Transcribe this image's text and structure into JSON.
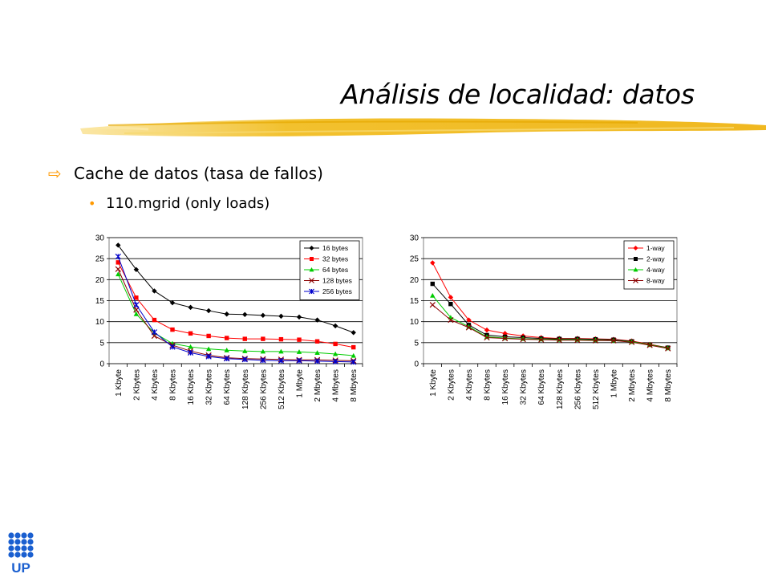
{
  "slide": {
    "title": "Análisis de localidad: datos",
    "bullet1": "Cache de datos (tasa de fallos)",
    "bullet2": "110.mgrid (only loads)",
    "logo_text": "UP"
  },
  "colors": {
    "accent": "#ff9900",
    "brush": "#f2c12e"
  },
  "icons": {
    "bullet1": "hollow-arrow-icon",
    "bullet2": "dot-icon"
  },
  "chart_data": [
    {
      "type": "line",
      "categories": [
        "1 Kbyte",
        "2 Kbytes",
        "4 Kbytes",
        "8 Kbytes",
        "16 Kbytes",
        "32 Kbytes",
        "64 Kbytes",
        "128 Kbytes",
        "256 Kbytes",
        "512 Kbytes",
        "1 Mbyte",
        "2 Mbytes",
        "4 Mbytes",
        "8 Mbytes"
      ],
      "ylim": [
        0,
        30
      ],
      "yticks": [
        0,
        5,
        10,
        15,
        20,
        25,
        30
      ],
      "grid": true,
      "legend_position": "top-right",
      "series": [
        {
          "name": "16 bytes",
          "color": "#000000",
          "marker": "diamond",
          "values": [
            28.2,
            22.4,
            17.3,
            14.5,
            13.4,
            12.6,
            11.8,
            11.7,
            11.5,
            11.3,
            11.1,
            10.4,
            9.0,
            7.4
          ]
        },
        {
          "name": "32 bytes",
          "color": "#ff0000",
          "marker": "square",
          "values": [
            24.1,
            15.7,
            10.4,
            8.1,
            7.2,
            6.6,
            6.1,
            5.9,
            5.9,
            5.8,
            5.7,
            5.3,
            4.7,
            3.9
          ]
        },
        {
          "name": "64 bytes",
          "color": "#00cc00",
          "marker": "triangle",
          "values": [
            21.3,
            11.8,
            7.3,
            4.8,
            4.0,
            3.5,
            3.2,
            3.0,
            2.9,
            2.9,
            2.8,
            2.6,
            2.3,
            1.9
          ]
        },
        {
          "name": "128 bytes",
          "color": "#8b0000",
          "marker": "x",
          "values": [
            22.5,
            12.8,
            6.6,
            4.4,
            3.0,
            2.0,
            1.4,
            1.2,
            1.1,
            1.0,
            0.9,
            0.9,
            0.8,
            0.7
          ]
        },
        {
          "name": "256 bytes",
          "color": "#0000cc",
          "marker": "star",
          "values": [
            25.5,
            14.0,
            7.5,
            4.0,
            2.6,
            1.7,
            1.2,
            1.0,
            0.8,
            0.7,
            0.7,
            0.6,
            0.5,
            0.4
          ]
        }
      ]
    },
    {
      "type": "line",
      "categories": [
        "1 Kbyte",
        "2 Kbytes",
        "4 Kbytes",
        "8 Kbytes",
        "16 Kbytes",
        "32 Kbytes",
        "64 Kbytes",
        "128 Kbytes",
        "256 Kbytes",
        "512 Kbytes",
        "1 Mbyte",
        "2 Mbytes",
        "4 Mbytes",
        "8 Mbytes"
      ],
      "ylim": [
        0,
        30
      ],
      "yticks": [
        0,
        5,
        10,
        15,
        20,
        25,
        30
      ],
      "grid": true,
      "legend_position": "top-right",
      "series": [
        {
          "name": "1-way",
          "color": "#ff0000",
          "marker": "diamond",
          "values": [
            24.0,
            15.8,
            10.4,
            8.0,
            7.2,
            6.6,
            6.2,
            6.0,
            6.0,
            5.9,
            5.8,
            5.4,
            4.6,
            3.8
          ]
        },
        {
          "name": "2-way",
          "color": "#000000",
          "marker": "square",
          "values": [
            19.0,
            14.2,
            9.2,
            6.8,
            6.4,
            6.2,
            6.0,
            5.9,
            5.9,
            5.8,
            5.7,
            5.3,
            4.5,
            3.8
          ]
        },
        {
          "name": "4-way",
          "color": "#00cc00",
          "marker": "triangle",
          "values": [
            16.2,
            11.0,
            8.8,
            6.4,
            6.1,
            5.9,
            5.8,
            5.7,
            5.7,
            5.6,
            5.5,
            5.2,
            4.5,
            3.7
          ]
        },
        {
          "name": "8-way",
          "color": "#8b0000",
          "marker": "x",
          "values": [
            14.0,
            10.4,
            8.6,
            6.2,
            6.0,
            5.8,
            5.7,
            5.6,
            5.6,
            5.5,
            5.5,
            5.1,
            4.4,
            3.6
          ]
        }
      ]
    }
  ]
}
